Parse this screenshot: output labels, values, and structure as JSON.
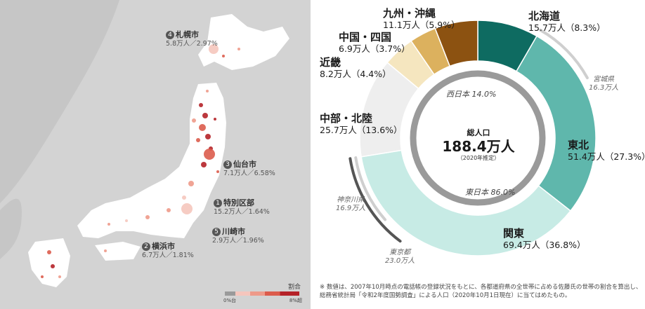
{
  "map": {
    "legend_title": "割合",
    "legend_low": "0%台",
    "legend_high": "8%超",
    "cities": [
      {
        "num": "4",
        "name": "札幌市",
        "detail": "5.8万人／2.97%"
      },
      {
        "num": "3",
        "name": "仙台市",
        "detail": "7.1万人／6.58%"
      },
      {
        "num": "1",
        "name": "特別区部",
        "detail": "15.2万人／1.64%"
      },
      {
        "num": "5",
        "name": "川崎市",
        "detail": "2.9万人／1.96%"
      },
      {
        "num": "2",
        "name": "横浜市",
        "detail": "6.7万人／1.81%"
      }
    ]
  },
  "center": {
    "label": "総人口",
    "value": "188.4万人",
    "note": "（2020年推定）"
  },
  "halves": {
    "west": {
      "name": "西日本",
      "pct": "14.0%"
    },
    "east": {
      "name": "東日本",
      "pct": "86.0%"
    }
  },
  "prefectures": [
    {
      "name": "宮城県",
      "value": "16.3万人"
    },
    {
      "name": "神奈川県",
      "value": "16.9万人"
    },
    {
      "name": "東京都",
      "value": "23.0万人"
    }
  ],
  "footnote": "※ 数値は、2007年10月時点の電話帳の登録状況をもとに、各都道府県の全世帯に占める佐藤氏の世帯の割合を算出し、総務省統計局「令和2年度国勢調査」による人口（2020年10月1日現在）に当てはめたもの。",
  "chart_data": {
    "type": "pie",
    "title": "総人口 188.4万人",
    "unit": "万人",
    "series": [
      {
        "values": [
          {
            "label": "北海道",
            "value": 15.7,
            "pct": 8.3,
            "display": "15.7万人（8.3%）",
            "color": "#0e6b61"
          },
          {
            "label": "東北",
            "value": 51.4,
            "pct": 27.3,
            "display": "51.4万人（27.3%）",
            "color": "#5fb7ac"
          },
          {
            "label": "関東",
            "value": 69.4,
            "pct": 36.8,
            "display": "69.4万人（36.8%）",
            "color": "#c7ebe5"
          },
          {
            "label": "中部・北陸",
            "value": 25.7,
            "pct": 13.6,
            "display": "25.7万人（13.6%）",
            "color": "#eeeeee"
          },
          {
            "label": "近畿",
            "value": 8.2,
            "pct": 4.4,
            "display": "8.2万人（4.4%）",
            "color": "#f5e6bf"
          },
          {
            "label": "中国・四国",
            "value": 6.9,
            "pct": 3.7,
            "display": "6.9万人（3.7%）",
            "color": "#dcb15e"
          },
          {
            "label": "九州・沖縄",
            "value": 11.1,
            "pct": 5.9,
            "display": "11.1万人（5.9%）",
            "color": "#8c5211"
          }
        ]
      }
    ],
    "inner_ring": [
      {
        "label": "東日本",
        "pct": 86.0
      },
      {
        "label": "西日本",
        "pct": 14.0
      }
    ],
    "prefecture_arcs": [
      {
        "label": "宮城県",
        "value": 16.3
      },
      {
        "label": "神奈川県",
        "value": 16.9
      },
      {
        "label": "東京都",
        "value": 23.0
      }
    ]
  }
}
